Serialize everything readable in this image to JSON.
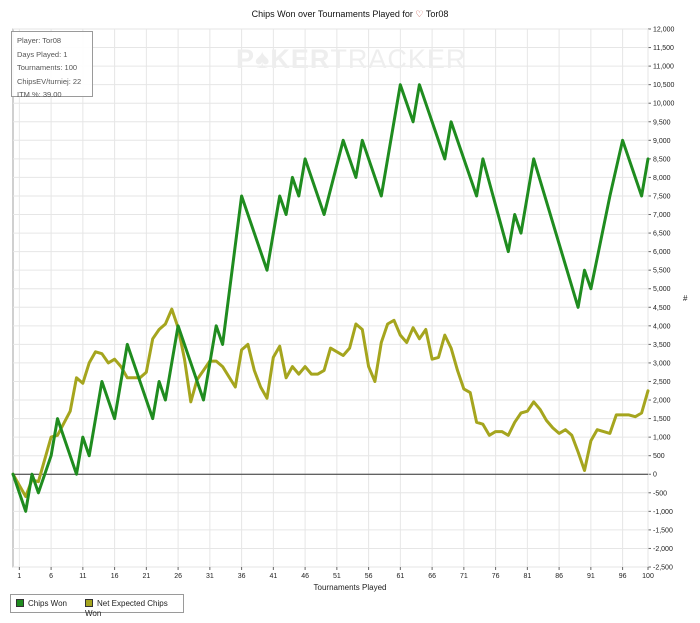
{
  "chart_data": {
    "type": "line",
    "title": "Chips Won over Tournaments Played for",
    "title_player": "Tor08",
    "title_icon": "heart-icon",
    "xlabel": "Tournaments Played",
    "ylabel": "#",
    "x_ticks": [
      1,
      6,
      11,
      16,
      21,
      26,
      31,
      36,
      41,
      46,
      51,
      56,
      61,
      66,
      71,
      76,
      81,
      86,
      91,
      96,
      100
    ],
    "xlim": [
      0,
      100
    ],
    "ylim": [
      -2500,
      12000
    ],
    "y_ticks": [
      -2500,
      -2000,
      -1500,
      -1000,
      -500,
      0,
      500,
      1000,
      1500,
      2000,
      2500,
      3000,
      3500,
      4000,
      4500,
      5000,
      5500,
      6000,
      6500,
      7000,
      7500,
      8000,
      8500,
      9000,
      9500,
      10000,
      10500,
      11000,
      11500,
      12000
    ],
    "y_tick_labels": [
      "-2,500",
      "-2,000",
      "-1,500",
      "-1,000",
      "-500",
      "0",
      "500",
      "1,000",
      "1,500",
      "2,000",
      "2,500",
      "3,000",
      "3,500",
      "4,000",
      "4,500",
      "5,000",
      "5,500",
      "6,000",
      "6,500",
      "7,000",
      "7,500",
      "8,000",
      "8,500",
      "9,000",
      "9,500",
      "10,000",
      "10,500",
      "11,000",
      "11,500",
      "12,000"
    ],
    "y_axis_side": "right",
    "grid": true,
    "legend_position": "bottom-left",
    "series": [
      {
        "name": "Chips Won",
        "color": "#1f8c1f",
        "points": [
          [
            0,
            0
          ],
          [
            2,
            -1000
          ],
          [
            3,
            0
          ],
          [
            4,
            -500
          ],
          [
            6,
            500
          ],
          [
            7,
            1500
          ],
          [
            10,
            0
          ],
          [
            11,
            1000
          ],
          [
            12,
            500
          ],
          [
            14,
            2500
          ],
          [
            16,
            1500
          ],
          [
            18,
            3500
          ],
          [
            22,
            1500
          ],
          [
            23,
            2500
          ],
          [
            24,
            2000
          ],
          [
            26,
            4000
          ],
          [
            30,
            2000
          ],
          [
            32,
            4000
          ],
          [
            33,
            3500
          ],
          [
            36,
            7500
          ],
          [
            40,
            5500
          ],
          [
            42,
            7500
          ],
          [
            43,
            7000
          ],
          [
            44,
            8000
          ],
          [
            45,
            7500
          ],
          [
            46,
            8500
          ],
          [
            49,
            7000
          ],
          [
            52,
            9000
          ],
          [
            54,
            8000
          ],
          [
            55,
            9000
          ],
          [
            58,
            7500
          ],
          [
            61,
            10500
          ],
          [
            63,
            9500
          ],
          [
            64,
            10500
          ],
          [
            68,
            8500
          ],
          [
            69,
            9500
          ],
          [
            73,
            7500
          ],
          [
            74,
            8500
          ],
          [
            78,
            6000
          ],
          [
            79,
            7000
          ],
          [
            80,
            6500
          ],
          [
            82,
            8500
          ],
          [
            89,
            4500
          ],
          [
            90,
            5500
          ],
          [
            91,
            5000
          ],
          [
            94,
            7500
          ],
          [
            96,
            9000
          ],
          [
            99,
            7500
          ],
          [
            100,
            8500
          ]
        ]
      },
      {
        "name": "Net Expected Chips Won",
        "color": "#a5a51e",
        "points": [
          [
            0,
            0
          ],
          [
            2,
            -600
          ],
          [
            3,
            -150
          ],
          [
            4,
            -200
          ],
          [
            6,
            1000
          ],
          [
            7,
            1050
          ],
          [
            9,
            1700
          ],
          [
            10,
            2600
          ],
          [
            11,
            2450
          ],
          [
            12,
            3000
          ],
          [
            13,
            3300
          ],
          [
            14,
            3250
          ],
          [
            15,
            3000
          ],
          [
            16,
            3100
          ],
          [
            17,
            2900
          ],
          [
            18,
            2600
          ],
          [
            19,
            2600
          ],
          [
            20,
            2600
          ],
          [
            21,
            2750
          ],
          [
            22,
            3650
          ],
          [
            23,
            3900
          ],
          [
            24,
            4050
          ],
          [
            25,
            4450
          ],
          [
            26,
            3950
          ],
          [
            27,
            3100
          ],
          [
            28,
            1950
          ],
          [
            29,
            2550
          ],
          [
            30,
            2800
          ],
          [
            31,
            3050
          ],
          [
            32,
            3050
          ],
          [
            33,
            2900
          ],
          [
            35,
            2350
          ],
          [
            36,
            3350
          ],
          [
            37,
            3500
          ],
          [
            38,
            2800
          ],
          [
            39,
            2350
          ],
          [
            40,
            2050
          ],
          [
            41,
            3150
          ],
          [
            42,
            3450
          ],
          [
            43,
            2600
          ],
          [
            44,
            2900
          ],
          [
            45,
            2700
          ],
          [
            46,
            2900
          ],
          [
            47,
            2700
          ],
          [
            48,
            2700
          ],
          [
            49,
            2800
          ],
          [
            50,
            3400
          ],
          [
            51,
            3300
          ],
          [
            52,
            3200
          ],
          [
            53,
            3400
          ],
          [
            54,
            4050
          ],
          [
            55,
            3900
          ],
          [
            56,
            2900
          ],
          [
            57,
            2500
          ],
          [
            58,
            3550
          ],
          [
            59,
            4050
          ],
          [
            60,
            4150
          ],
          [
            61,
            3750
          ],
          [
            62,
            3550
          ],
          [
            63,
            3950
          ],
          [
            64,
            3650
          ],
          [
            65,
            3900
          ],
          [
            66,
            3100
          ],
          [
            67,
            3150
          ],
          [
            68,
            3750
          ],
          [
            69,
            3400
          ],
          [
            70,
            2800
          ],
          [
            71,
            2300
          ],
          [
            72,
            2200
          ],
          [
            73,
            1400
          ],
          [
            74,
            1350
          ],
          [
            75,
            1050
          ],
          [
            76,
            1150
          ],
          [
            77,
            1150
          ],
          [
            78,
            1050
          ],
          [
            79,
            1400
          ],
          [
            80,
            1650
          ],
          [
            81,
            1700
          ],
          [
            82,
            1950
          ],
          [
            83,
            1750
          ],
          [
            84,
            1450
          ],
          [
            85,
            1250
          ],
          [
            86,
            1100
          ],
          [
            87,
            1200
          ],
          [
            88,
            1050
          ],
          [
            89,
            600
          ],
          [
            90,
            100
          ],
          [
            91,
            900
          ],
          [
            92,
            1200
          ],
          [
            93,
            1150
          ],
          [
            94,
            1100
          ],
          [
            95,
            1600
          ],
          [
            96,
            1600
          ],
          [
            97,
            1600
          ],
          [
            98,
            1550
          ],
          [
            99,
            1650
          ],
          [
            100,
            2250
          ]
        ]
      }
    ]
  },
  "info_box": {
    "player": "Player: Tor08",
    "days": "Days Played: 1",
    "tournaments": "Tournaments: 100",
    "chipsev": "ChipsEV/turniej: 22",
    "itm": "ITM %: 39.00"
  },
  "watermark": {
    "part1": "P",
    "part2": "KER",
    "part3": "TRACKER",
    "suit": "♠"
  },
  "legend": {
    "item1": "Chips Won",
    "item2": "Net Expected Chips Won"
  }
}
